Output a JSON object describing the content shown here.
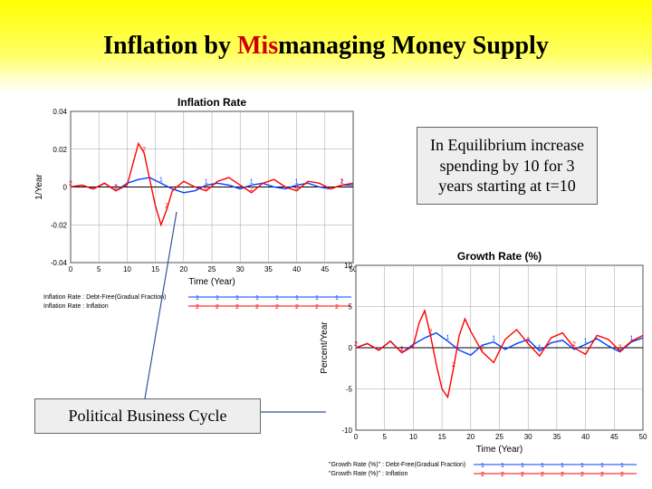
{
  "header": {
    "title_prefix": "Inflation by ",
    "title_mis": "Mis",
    "title_suffix": "managing Money Supply",
    "bg_gradient": [
      "#ffff00",
      "#ffffff"
    ],
    "title_fontsize": 28
  },
  "callouts": {
    "equilibrium": "In Equilibrium increase spending by 10 for 3 years starting at t=10",
    "pbc": "Political Business Cycle"
  },
  "chart_inflation": {
    "title": "Inflation Rate",
    "type": "line",
    "xlabel": "Time (Year)",
    "ylabel": "1/Year",
    "xlim": [
      0,
      50
    ],
    "ylim": [
      -0.04,
      0.04
    ],
    "xtick_step": 5,
    "ytick_step": 0.02,
    "background_color": "#ffffff",
    "grid_color": "#a0a0a0",
    "axis_color": "#000000",
    "title_fontsize": 12,
    "label_fontsize": 10,
    "tick_fontsize": 8,
    "series": [
      {
        "name": "Inflation Rate : Debt-Free(Gradual Fraction)",
        "color": "#0040ff",
        "marker_label": "1",
        "line_width": 1.4,
        "x": [
          0,
          2,
          4,
          6,
          8,
          10,
          12,
          14,
          16,
          18,
          20,
          22,
          24,
          26,
          28,
          30,
          32,
          34,
          36,
          38,
          40,
          42,
          44,
          46,
          48,
          50
        ],
        "y": [
          0.0,
          0.001,
          -0.001,
          0.002,
          -0.002,
          0.002,
          0.004,
          0.005,
          0.002,
          -0.001,
          -0.003,
          -0.002,
          0.001,
          0.002,
          0.001,
          -0.001,
          0.001,
          0.002,
          0.0,
          -0.001,
          0.001,
          0.002,
          0.0,
          -0.001,
          0.001,
          0.001
        ]
      },
      {
        "name": "Inflation Rate : Inflation",
        "color": "#ff0000",
        "marker_label": "2",
        "line_width": 1.4,
        "x": [
          0,
          2,
          4,
          6,
          8,
          10,
          11,
          12,
          13,
          14,
          15,
          16,
          17,
          18,
          20,
          22,
          24,
          26,
          28,
          30,
          32,
          34,
          36,
          38,
          40,
          42,
          44,
          46,
          48,
          50
        ],
        "y": [
          0.0,
          0.001,
          -0.001,
          0.002,
          -0.002,
          0.001,
          0.012,
          0.023,
          0.018,
          0.004,
          -0.01,
          -0.02,
          -0.012,
          -0.002,
          0.003,
          0.0,
          -0.002,
          0.003,
          0.005,
          0.001,
          -0.003,
          0.002,
          0.004,
          0.0,
          -0.002,
          0.003,
          0.002,
          -0.001,
          0.001,
          0.002
        ]
      }
    ],
    "legend_rows": [
      {
        "label": "Inflation Rate : Debt-Free(Gradual Fraction)",
        "marker": "1",
        "color": "#0040ff"
      },
      {
        "label": "Inflation Rate : Inflation",
        "marker": "2",
        "color": "#ff0000"
      }
    ]
  },
  "chart_growth": {
    "title": "Growth Rate (%)",
    "type": "line",
    "xlabel": "Time (Year)",
    "ylabel": "Percent/Year",
    "xlim": [
      0,
      50
    ],
    "ylim": [
      -10,
      10
    ],
    "xtick_step": 5,
    "ytick_step": 5,
    "background_color": "#ffffff",
    "grid_color": "#a0a0a0",
    "axis_color": "#000000",
    "title_fontsize": 12,
    "label_fontsize": 10,
    "tick_fontsize": 8,
    "series": [
      {
        "name": "Growth Rate (%) : Debt-Free(Gradual Fraction)",
        "color": "#0040ff",
        "marker_label": "1",
        "line_width": 1.4,
        "x": [
          0,
          2,
          4,
          6,
          8,
          10,
          12,
          14,
          16,
          18,
          20,
          22,
          24,
          26,
          28,
          30,
          32,
          34,
          36,
          38,
          40,
          42,
          44,
          46,
          48,
          50
        ],
        "y": [
          0.0,
          0.5,
          -0.3,
          0.8,
          -0.6,
          0.4,
          1.2,
          1.8,
          0.8,
          -0.3,
          -0.9,
          0.3,
          0.7,
          -0.2,
          0.5,
          1.0,
          -0.4,
          0.6,
          0.9,
          -0.2,
          0.4,
          1.1,
          0.2,
          -0.5,
          0.7,
          1.2
        ]
      },
      {
        "name": "Growth Rate (%) : Inflation",
        "color": "#ff0000",
        "marker_label": "2",
        "line_width": 1.4,
        "x": [
          0,
          2,
          4,
          6,
          8,
          10,
          11,
          12,
          13,
          14,
          15,
          16,
          17,
          18,
          19,
          20,
          22,
          24,
          26,
          28,
          30,
          32,
          34,
          36,
          38,
          40,
          42,
          44,
          46,
          48,
          50
        ],
        "y": [
          0.0,
          0.5,
          -0.3,
          0.8,
          -0.6,
          0.2,
          3.0,
          4.5,
          1.5,
          -2.0,
          -5.0,
          -6.0,
          -2.5,
          1.5,
          3.5,
          2.0,
          -0.5,
          -1.8,
          1.0,
          2.2,
          0.5,
          -1.0,
          1.2,
          1.8,
          0.0,
          -0.8,
          1.5,
          1.0,
          -0.4,
          0.8,
          1.5
        ]
      }
    ],
    "legend_rows": [
      {
        "label": "\"Growth Rate (%)\" : Debt-Free(Gradual Fraction)",
        "marker": "1",
        "color": "#0040ff"
      },
      {
        "label": "\"Growth Rate (%)\" : Inflation",
        "marker": "2",
        "color": "#ff0000"
      }
    ]
  },
  "annotation_lines": {
    "color": "#335599",
    "width": 1.2
  }
}
